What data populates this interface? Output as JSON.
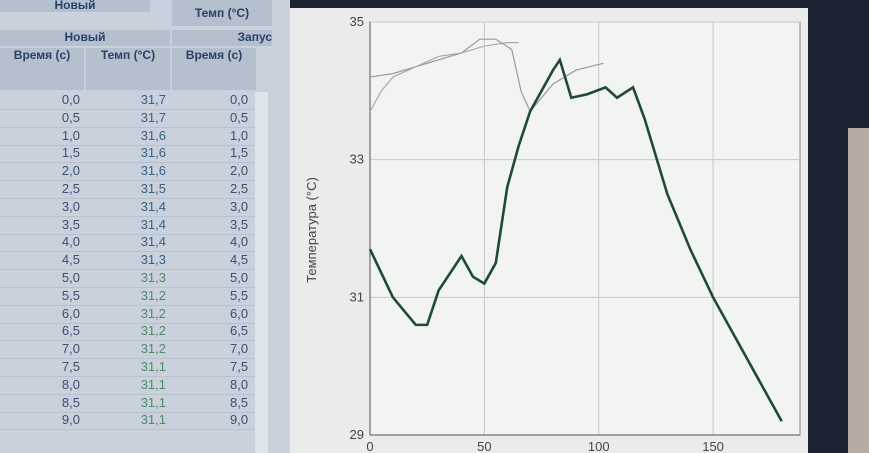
{
  "table": {
    "top_headers": [
      "Новый",
      "Темп (°C)"
    ],
    "group_headers": [
      "Новый",
      "Запус"
    ],
    "columns": [
      "Время (с)",
      "Темп (°C)",
      "Время (с)"
    ],
    "rows": [
      [
        "0,0",
        "31,7",
        "0,0"
      ],
      [
        "0,5",
        "31,7",
        "0,5"
      ],
      [
        "1,0",
        "31,6",
        "1,0"
      ],
      [
        "1,5",
        "31,6",
        "1,5"
      ],
      [
        "2,0",
        "31,6",
        "2,0"
      ],
      [
        "2,5",
        "31,5",
        "2,5"
      ],
      [
        "3,0",
        "31,4",
        "3,0"
      ],
      [
        "3,5",
        "31,4",
        "3,5"
      ],
      [
        "4,0",
        "31,4",
        "4,0"
      ],
      [
        "4,5",
        "31,3",
        "4,5"
      ],
      [
        "5,0",
        "31,3",
        "5,0"
      ],
      [
        "5,5",
        "31,2",
        "5,5"
      ],
      [
        "6,0",
        "31,2",
        "6,0"
      ],
      [
        "6,5",
        "31,2",
        "6,5"
      ],
      [
        "7,0",
        "31,2",
        "7,0"
      ],
      [
        "7,5",
        "31,1",
        "7,5"
      ],
      [
        "8,0",
        "31,1",
        "8,0"
      ],
      [
        "8,5",
        "31,1",
        "8,5"
      ],
      [
        "9,0",
        "31,1",
        "9,0"
      ]
    ]
  },
  "chart": {
    "type": "line",
    "ylabel": "Температура (°C)",
    "xlim": [
      0,
      188
    ],
    "ylim": [
      29,
      35
    ],
    "xticks": [
      0,
      50,
      100,
      150
    ],
    "yticks": [
      29,
      31,
      33,
      35
    ],
    "grid": true,
    "series": [
      {
        "color": "#9a9a9a",
        "x": [
          0,
          10,
          20,
          30,
          40,
          48,
          55,
          62,
          66,
          70,
          80,
          90,
          102
        ],
        "values": [
          34.2,
          34.25,
          34.35,
          34.45,
          34.55,
          34.75,
          34.75,
          34.6,
          34.0,
          33.7,
          34.1,
          34.3,
          34.4
        ]
      },
      {
        "color": "#a8a8a8",
        "x": [
          0,
          5,
          10,
          20,
          30,
          40,
          50,
          60,
          65
        ],
        "values": [
          33.7,
          34.0,
          34.2,
          34.35,
          34.5,
          34.55,
          34.65,
          34.7,
          34.7
        ]
      },
      {
        "color": "#1f4a38",
        "x": [
          0,
          10,
          20,
          25,
          30,
          40,
          45,
          50,
          55,
          60,
          65,
          70,
          80,
          83,
          88,
          95,
          103,
          108,
          115,
          120,
          130,
          140,
          150,
          160,
          170,
          180
        ],
        "values": [
          31.7,
          31.0,
          30.6,
          30.6,
          31.1,
          31.6,
          31.3,
          31.2,
          31.5,
          32.6,
          33.2,
          33.7,
          34.3,
          34.45,
          33.9,
          33.95,
          34.05,
          33.9,
          34.05,
          33.6,
          32.5,
          31.7,
          31.0,
          30.4,
          29.8,
          29.2
        ]
      }
    ]
  }
}
